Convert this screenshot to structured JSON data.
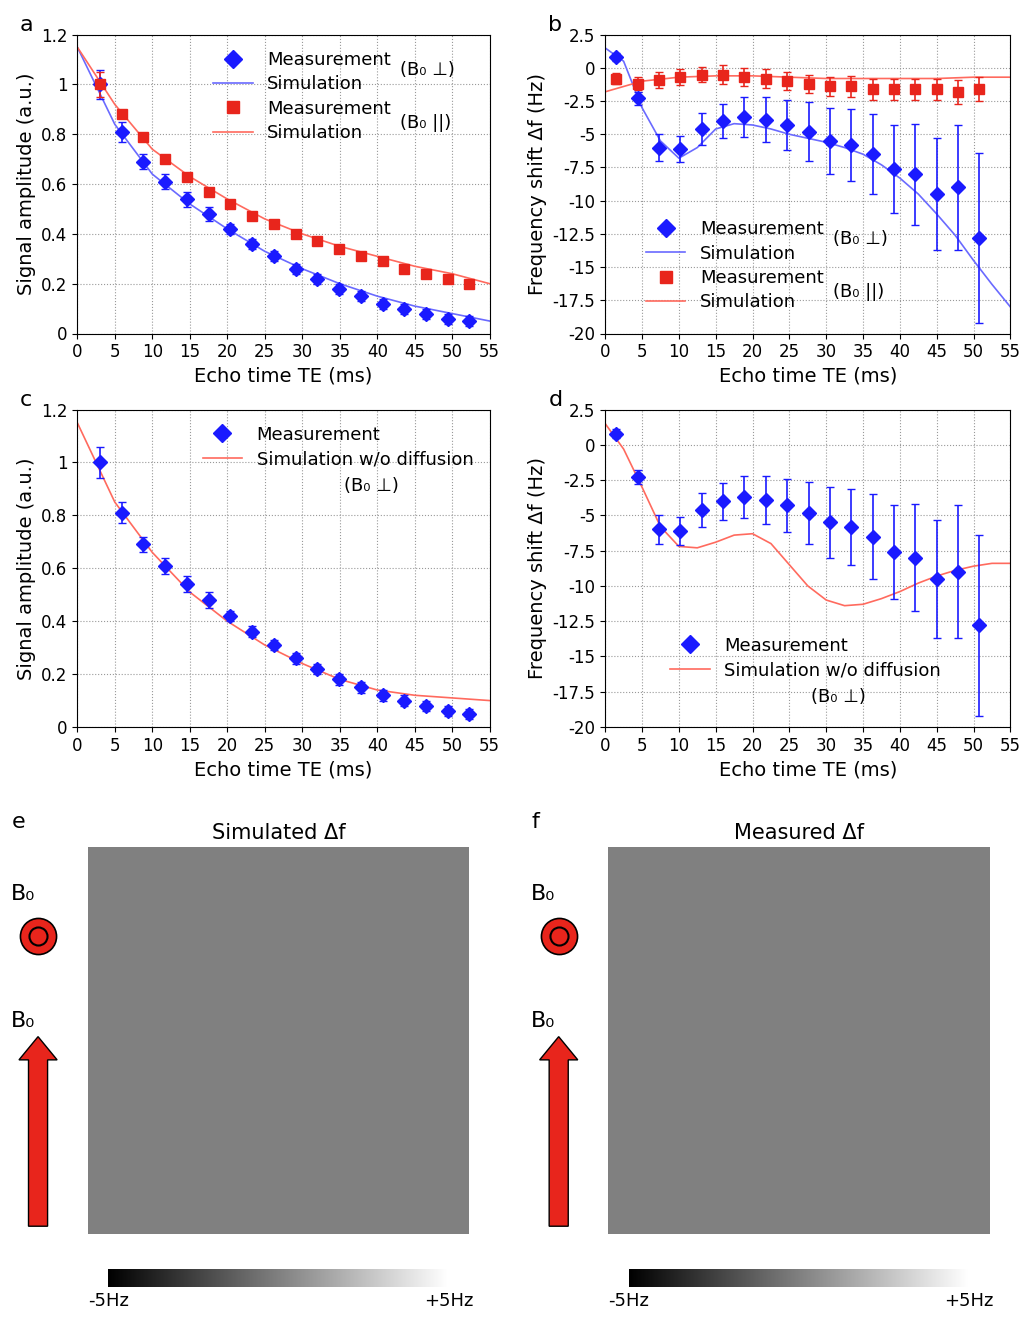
{
  "chart_data": [
    {
      "type": "line",
      "panel": "a",
      "xlabel": "Echo time TE (ms)",
      "ylabel": "Signal amplitude (a.u.)",
      "xlim": [
        0,
        55
      ],
      "xticks": [
        0,
        5,
        10,
        15,
        20,
        25,
        30,
        35,
        40,
        45,
        50,
        55
      ],
      "ylim": [
        0,
        1.2
      ],
      "yticks": [
        0,
        0.2,
        0.4,
        0.6,
        0.8,
        1,
        1.2
      ],
      "grid": true,
      "legend": "upper right",
      "legend_groups": [
        "(B₀ ⊥)",
        "(B₀ ||)"
      ],
      "series": [
        {
          "name": "Measurement",
          "type": "scatter",
          "marker": "diamond",
          "color": "#1a1aff",
          "x": [
            3,
            5.9,
            8.8,
            11.7,
            14.6,
            17.5,
            20.4,
            23.3,
            26.2,
            29.1,
            32,
            34.9,
            37.8,
            40.7,
            43.6,
            46.5,
            49.4,
            52.3
          ],
          "values": [
            1.0,
            0.81,
            0.69,
            0.61,
            0.54,
            0.48,
            0.42,
            0.36,
            0.31,
            0.26,
            0.22,
            0.18,
            0.15,
            0.12,
            0.1,
            0.08,
            0.06,
            0.05
          ],
          "errors": [
            0.06,
            0.04,
            0.03,
            0.03,
            0.03,
            0.03,
            0.02,
            0.02,
            0.02,
            0.02,
            0.02,
            0.02,
            0.02,
            0.02,
            0.02,
            0.02,
            0.02,
            0.02
          ]
        },
        {
          "name": "Simulation",
          "type": "line",
          "color": "#6a6aff",
          "x": [
            0,
            5,
            10,
            15,
            20,
            25,
            30,
            35,
            40,
            45,
            50,
            55
          ],
          "values": [
            1.15,
            0.84,
            0.64,
            0.52,
            0.42,
            0.33,
            0.26,
            0.2,
            0.15,
            0.11,
            0.08,
            0.05
          ]
        },
        {
          "name": "Measurement",
          "type": "scatter",
          "marker": "square",
          "color": "#e8251c",
          "x": [
            3,
            5.9,
            8.8,
            11.7,
            14.6,
            17.5,
            20.4,
            23.3,
            26.2,
            29.1,
            32,
            34.9,
            37.8,
            40.7,
            43.6,
            46.5,
            49.4,
            52.3
          ],
          "values": [
            1.0,
            0.88,
            0.79,
            0.7,
            0.63,
            0.57,
            0.52,
            0.47,
            0.44,
            0.4,
            0.37,
            0.34,
            0.31,
            0.29,
            0.26,
            0.24,
            0.22,
            0.2
          ],
          "errors": [
            0.05,
            0.01,
            0.01,
            0.01,
            0.01,
            0.01,
            0.01,
            0.01,
            0.01,
            0.01,
            0.01,
            0.01,
            0.01,
            0.01,
            0.01,
            0.01,
            0.01,
            0.01
          ]
        },
        {
          "name": "Simulation",
          "type": "line",
          "color": "#ff6a5e",
          "x": [
            0,
            5,
            10,
            15,
            20,
            25,
            30,
            35,
            40,
            45,
            50,
            55
          ],
          "values": [
            1.15,
            0.92,
            0.74,
            0.63,
            0.54,
            0.46,
            0.4,
            0.35,
            0.31,
            0.27,
            0.24,
            0.2
          ]
        }
      ]
    },
    {
      "type": "line",
      "panel": "b",
      "xlabel": "Echo time TE (ms)",
      "ylabel": "Frequency shift Δf (Hz)",
      "xlim": [
        0,
        55
      ],
      "xticks": [
        0,
        5,
        10,
        15,
        20,
        25,
        30,
        35,
        40,
        45,
        50,
        55
      ],
      "ylim": [
        -20,
        2.5
      ],
      "yticks": [
        -20,
        -17.5,
        -15,
        -12.5,
        -10,
        -7.5,
        -5,
        -2.5,
        0,
        2.5
      ],
      "grid": true,
      "legend": "lower left",
      "legend_groups": [
        "(B₀ ⊥)",
        "(B₀ ||)"
      ],
      "series": [
        {
          "name": "Measurement",
          "type": "scatter",
          "marker": "diamond",
          "color": "#1a1aff",
          "x": [
            1.5,
            4.4,
            7.3,
            10.2,
            13.1,
            16,
            18.9,
            21.8,
            24.7,
            27.6,
            30.5,
            33.4,
            36.3,
            39.2,
            42.1,
            45,
            47.9,
            50.8
          ],
          "values": [
            0.8,
            -2.3,
            -6.0,
            -6.1,
            -4.6,
            -4.0,
            -3.7,
            -3.9,
            -4.3,
            -4.8,
            -5.5,
            -5.8,
            -6.5,
            -7.6,
            -8.0,
            -9.5,
            -9.0,
            -12.8
          ],
          "errors": [
            0.3,
            0.5,
            1.0,
            1.0,
            1.2,
            1.3,
            1.5,
            1.7,
            1.9,
            2.2,
            2.5,
            2.7,
            3.0,
            3.3,
            3.8,
            4.2,
            4.7,
            6.4
          ]
        },
        {
          "name": "Simulation",
          "type": "line",
          "color": "#6a6aff",
          "x": [
            0,
            2.5,
            5,
            7.5,
            10,
            12.5,
            15,
            17.5,
            20,
            22.5,
            25,
            27.5,
            30,
            32.5,
            35,
            37.5,
            40,
            42.5,
            45,
            47.5,
            50,
            52.5,
            55
          ],
          "values": [
            1.5,
            0.5,
            -3.0,
            -5.5,
            -6.8,
            -6.0,
            -4.6,
            -4.2,
            -4.3,
            -4.6,
            -5.0,
            -5.3,
            -5.6,
            -6.0,
            -6.5,
            -7.3,
            -8.3,
            -9.5,
            -11.0,
            -12.6,
            -14.5,
            -16.3,
            -18.0
          ]
        },
        {
          "name": "Measurement",
          "type": "scatter",
          "marker": "square",
          "color": "#e8251c",
          "x": [
            1.5,
            4.4,
            7.3,
            10.2,
            13.1,
            16,
            18.9,
            21.8,
            24.7,
            27.6,
            30.5,
            33.4,
            36.3,
            39.2,
            42.1,
            45,
            47.9,
            50.8
          ],
          "values": [
            -0.8,
            -1.2,
            -0.9,
            -0.7,
            -0.5,
            -0.5,
            -0.7,
            -0.8,
            -1.0,
            -1.2,
            -1.4,
            -1.4,
            -1.6,
            -1.6,
            -1.6,
            -1.6,
            -1.8,
            -1.6
          ],
          "errors": [
            0.4,
            0.5,
            0.6,
            0.6,
            0.6,
            0.7,
            0.7,
            0.7,
            0.7,
            0.7,
            0.7,
            0.8,
            0.8,
            0.8,
            0.8,
            0.8,
            0.9,
            0.9
          ]
        },
        {
          "name": "Simulation",
          "type": "line",
          "color": "#ff6a5e",
          "x": [
            0,
            5,
            10,
            15,
            20,
            25,
            30,
            35,
            40,
            45,
            50,
            55
          ],
          "values": [
            -1.8,
            -1.0,
            -0.7,
            -0.6,
            -0.6,
            -0.7,
            -0.8,
            -0.8,
            -0.8,
            -0.8,
            -0.7,
            -0.7
          ]
        }
      ]
    },
    {
      "type": "line",
      "panel": "c",
      "xlabel": "Echo time TE (ms)",
      "ylabel": "Signal amplitude (a.u.)",
      "xlim": [
        0,
        55
      ],
      "xticks": [
        0,
        5,
        10,
        15,
        20,
        25,
        30,
        35,
        40,
        45,
        50,
        55
      ],
      "ylim": [
        0,
        1.2
      ],
      "yticks": [
        0,
        0.2,
        0.4,
        0.6,
        0.8,
        1,
        1.2
      ],
      "grid": true,
      "legend": "upper right",
      "legend_groups": [
        "(B₀ ⊥)"
      ],
      "series": [
        {
          "name": "Measurement",
          "type": "scatter",
          "marker": "diamond",
          "color": "#1a1aff",
          "x": [
            3,
            5.9,
            8.8,
            11.7,
            14.6,
            17.5,
            20.4,
            23.3,
            26.2,
            29.1,
            32,
            34.9,
            37.8,
            40.7,
            43.6,
            46.5,
            49.4,
            52.3
          ],
          "values": [
            1.0,
            0.81,
            0.69,
            0.61,
            0.54,
            0.48,
            0.42,
            0.36,
            0.31,
            0.26,
            0.22,
            0.18,
            0.15,
            0.12,
            0.1,
            0.08,
            0.06,
            0.05
          ],
          "errors": [
            0.06,
            0.04,
            0.03,
            0.03,
            0.03,
            0.03,
            0.02,
            0.02,
            0.02,
            0.02,
            0.02,
            0.02,
            0.02,
            0.02,
            0.02,
            0.02,
            0.02,
            0.02
          ]
        },
        {
          "name": "Simulation w/o diffusion",
          "type": "line",
          "color": "#ff6a5e",
          "x": [
            0,
            5,
            10,
            15,
            20,
            25,
            30,
            35,
            40,
            45,
            50,
            55
          ],
          "values": [
            1.15,
            0.85,
            0.66,
            0.51,
            0.4,
            0.31,
            0.24,
            0.18,
            0.14,
            0.12,
            0.11,
            0.1
          ]
        }
      ]
    },
    {
      "type": "line",
      "panel": "d",
      "xlabel": "Echo time TE (ms)",
      "ylabel": "Frequency shift Δf (Hz)",
      "xlim": [
        0,
        55
      ],
      "xticks": [
        0,
        5,
        10,
        15,
        20,
        25,
        30,
        35,
        40,
        45,
        50,
        55
      ],
      "ylim": [
        -20,
        2.5
      ],
      "yticks": [
        -20,
        -17.5,
        -15,
        -12.5,
        -10,
        -7.5,
        -5,
        -2.5,
        0,
        2.5
      ],
      "grid": true,
      "legend": "lower left",
      "legend_groups": [
        "(B₀ ⊥)"
      ],
      "series": [
        {
          "name": "Measurement",
          "type": "scatter",
          "marker": "diamond",
          "color": "#1a1aff",
          "x": [
            1.5,
            4.4,
            7.3,
            10.2,
            13.1,
            16,
            18.9,
            21.8,
            24.7,
            27.6,
            30.5,
            33.4,
            36.3,
            39.2,
            42.1,
            45,
            47.9,
            50.8
          ],
          "values": [
            0.8,
            -2.3,
            -6.0,
            -6.1,
            -4.6,
            -4.0,
            -3.7,
            -3.9,
            -4.3,
            -4.8,
            -5.5,
            -5.8,
            -6.5,
            -7.6,
            -8.0,
            -9.5,
            -9.0,
            -12.8
          ],
          "errors": [
            0.3,
            0.5,
            1.0,
            1.0,
            1.2,
            1.3,
            1.5,
            1.7,
            1.9,
            2.2,
            2.5,
            2.7,
            3.0,
            3.3,
            3.8,
            4.2,
            4.7,
            6.4
          ]
        },
        {
          "name": "Simulation w/o diffusion",
          "type": "line",
          "color": "#ff6a5e",
          "x": [
            0,
            2.5,
            5,
            7.5,
            10,
            12.5,
            15,
            17.5,
            20,
            22.5,
            25,
            27.5,
            30,
            32.5,
            35,
            37.5,
            40,
            42.5,
            45,
            47.5,
            50,
            52.5,
            55
          ],
          "values": [
            1.5,
            -0.3,
            -3.0,
            -5.8,
            -7.2,
            -7.3,
            -6.9,
            -6.4,
            -6.3,
            -7.0,
            -8.5,
            -10.0,
            -11.0,
            -11.4,
            -11.3,
            -10.9,
            -10.4,
            -9.8,
            -9.3,
            -8.9,
            -8.6,
            -8.4,
            -8.4
          ]
        }
      ]
    },
    {
      "type": "image",
      "panel": "e",
      "title": "Simulated Δf",
      "annotations": [
        "B₀",
        "B₀"
      ],
      "colorbar_range": [
        -5,
        5
      ],
      "colorbar_ticks": [
        {
          "value": -5,
          "label": "-5Hz"
        },
        {
          "value": 5,
          "label": "+5Hz"
        }
      ]
    },
    {
      "type": "image",
      "panel": "f",
      "title": "Measured Δf",
      "annotations": [
        "B₀",
        "B₀"
      ],
      "colorbar_range": [
        -5,
        5
      ],
      "colorbar_ticks": [
        {
          "value": -5,
          "label": "-5Hz"
        },
        {
          "value": 5,
          "label": "+5Hz"
        }
      ]
    }
  ]
}
